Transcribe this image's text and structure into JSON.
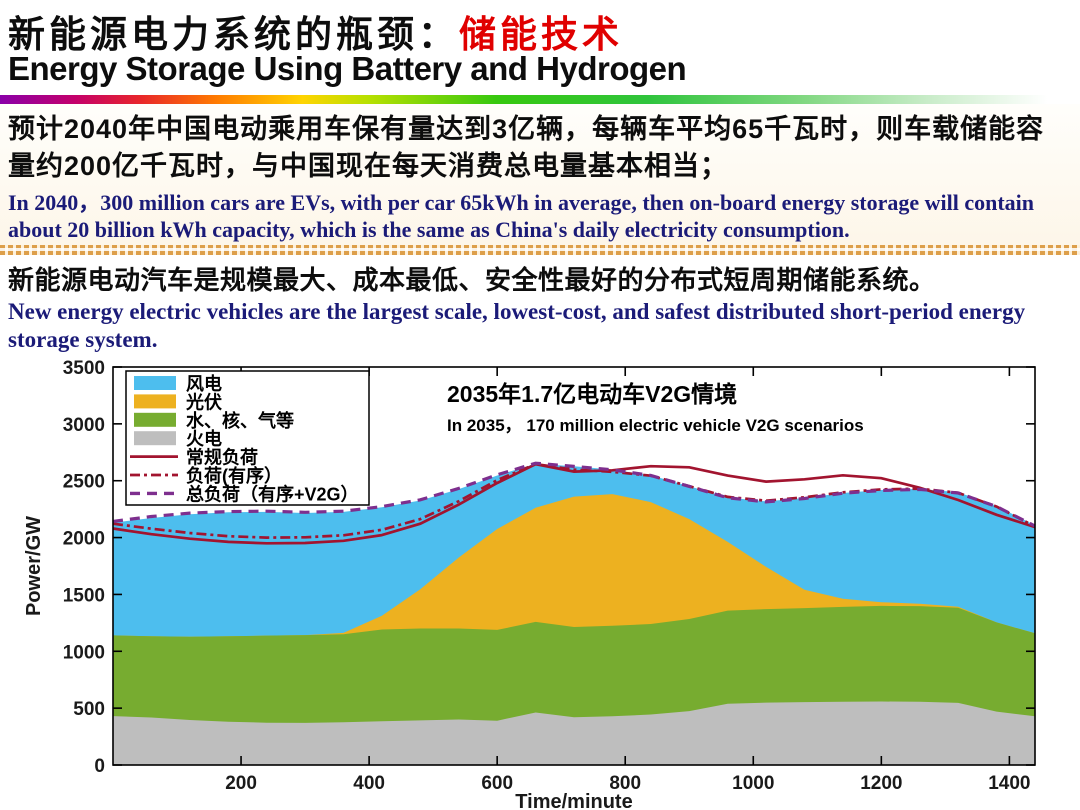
{
  "slide": {
    "title": {
      "cn_black": "新能源电力系统的瓶颈：",
      "cn_red": "储能技术",
      "en": "Energy Storage Using Battery and Hydrogen"
    },
    "point1": {
      "cn": "预计2040年中国电动乘用车保有量达到3亿辆，每辆车平均65千瓦时，则车载储能容量约200亿千瓦时，与中国现在每天消费总电量基本相当；",
      "en": "In 2040，300 million cars are EVs, with per car 65kWh in average, then on-board energy storage will contain about 20 billion kWh capacity, which is the same as China's daily electricity consumption."
    },
    "point2": {
      "cn": "新能源电动汽车是规模最大、成本最低、安全性最好的分布式短周期储能系统。",
      "en": "New energy electric vehicles are the largest scale, lowest-cost, and safest distributed short-period energy storage system."
    }
  },
  "chart_data": {
    "type": "area",
    "stacked": true,
    "title_cn": "2035年1.7亿电动车V2G情境",
    "title_en": "In 2035，  170 million electric vehicle V2G scenarios",
    "xlabel": "Time/minute",
    "ylabel": "Power/GW",
    "xlim": [
      0,
      1440
    ],
    "ylim": [
      0,
      3500
    ],
    "x_ticks": [
      200,
      400,
      600,
      800,
      1000,
      1200,
      1400
    ],
    "y_ticks": [
      0,
      500,
      1000,
      1500,
      2000,
      2500,
      3000,
      3500
    ],
    "grid": false,
    "x": [
      0,
      60,
      120,
      180,
      240,
      300,
      360,
      420,
      480,
      540,
      600,
      660,
      720,
      780,
      840,
      900,
      960,
      1020,
      1080,
      1140,
      1200,
      1260,
      1320,
      1380,
      1440
    ],
    "area_series": [
      {
        "name": "火电",
        "color": "#BEBEBE",
        "values": [
          430,
          418,
          396,
          380,
          372,
          370,
          376,
          384,
          392,
          400,
          390,
          462,
          420,
          428,
          444,
          474,
          538,
          549,
          553,
          556,
          558,
          556,
          546,
          470,
          428
        ]
      },
      {
        "name": "水、核、气等",
        "color": "#77AC30",
        "values": [
          710,
          715,
          732,
          752,
          766,
          772,
          774,
          808,
          808,
          800,
          798,
          796,
          794,
          796,
          796,
          810,
          820,
          822,
          827,
          834,
          841,
          841,
          837,
          784,
          730
        ]
      },
      {
        "name": "光伏",
        "color": "#EDB120",
        "values": [
          0,
          0,
          0,
          0,
          0,
          0,
          12,
          120,
          345,
          625,
          887,
          1004,
          1146,
          1158,
          1072,
          878,
          604,
          371,
          162,
          72,
          33,
          21,
          9,
          0,
          0
        ]
      },
      {
        "name": "风电",
        "color": "#4DBEEE",
        "values": [
          990,
          1039,
          1077,
          1090,
          1088,
          1074,
          1064,
          954,
          781,
          601,
          471,
          388,
          268,
          216,
          236,
          290,
          390,
          576,
          806,
          930,
          986,
          1010,
          1006,
          1024,
          950
        ]
      }
    ],
    "line_series": [
      {
        "name": "常规负荷",
        "style": "solid",
        "color": "#A2142F",
        "values": [
          2080,
          2030,
          1990,
          1962,
          1950,
          1952,
          1972,
          2022,
          2122,
          2290,
          2480,
          2645,
          2580,
          2592,
          2628,
          2618,
          2545,
          2492,
          2512,
          2548,
          2522,
          2438,
          2330,
          2200,
          2092
        ]
      },
      {
        "name": "负荷(有序）",
        "style": "dashdot",
        "color": "#A2142F",
        "values": [
          2122,
          2078,
          2040,
          2012,
          2000,
          2002,
          2020,
          2068,
          2162,
          2320,
          2505,
          2646,
          2598,
          2578,
          2544,
          2452,
          2358,
          2324,
          2354,
          2398,
          2424,
          2430,
          2394,
          2272,
          2098
        ]
      },
      {
        "name": "总负荷（有序+V2G）",
        "style": "dashed",
        "color": "#7E2F8E",
        "values": [
          2142,
          2185,
          2215,
          2228,
          2232,
          2222,
          2232,
          2272,
          2332,
          2432,
          2552,
          2654,
          2626,
          2596,
          2546,
          2450,
          2350,
          2314,
          2344,
          2390,
          2414,
          2424,
          2392,
          2272,
          2102
        ]
      }
    ],
    "legend": {
      "position": "top-left",
      "entries": [
        {
          "label": "风电",
          "type": "patch",
          "color": "#4DBEEE"
        },
        {
          "label": "光伏",
          "type": "patch",
          "color": "#EDB120"
        },
        {
          "label": "水、核、气等",
          "type": "patch",
          "color": "#77AC30"
        },
        {
          "label": "火电",
          "type": "patch",
          "color": "#BEBEBE"
        },
        {
          "label": "常规负荷",
          "type": "line",
          "style": "solid",
          "color": "#A2142F"
        },
        {
          "label": "负荷(有序）",
          "type": "line",
          "style": "dashdot",
          "color": "#A2142F"
        },
        {
          "label": "总负荷（有序+V2G）",
          "type": "line",
          "style": "dashed",
          "color": "#7E2F8E"
        }
      ]
    }
  }
}
